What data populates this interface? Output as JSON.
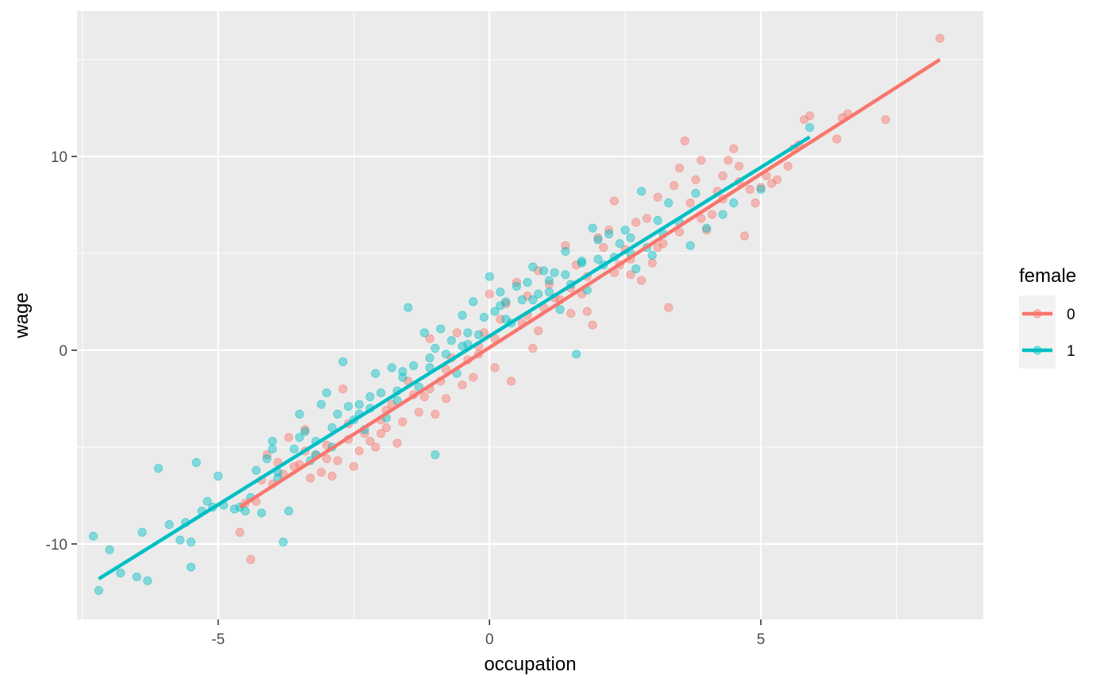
{
  "chart_data": {
    "type": "scatter",
    "title": "",
    "xlabel": "occupation",
    "ylabel": "wage",
    "xlim": [
      -7.6,
      9.1
    ],
    "ylim": [
      -13.9,
      17.5
    ],
    "x_ticks": [
      -5,
      0,
      5
    ],
    "y_ticks": [
      -10,
      0,
      10
    ],
    "x_tick_labels": [
      "-5",
      "0",
      "5"
    ],
    "y_tick_labels": [
      "-10",
      "0",
      "10"
    ],
    "grid": true,
    "legend": {
      "title": "female",
      "placement": "right",
      "entries": [
        "0",
        "1"
      ]
    },
    "series": [
      {
        "name": "0",
        "color": "#F8766D",
        "fit_line": {
          "x": [
            -4.6,
            8.3
          ],
          "y": [
            -8.1,
            15.0
          ]
        },
        "points": [
          [
            8.3,
            16.1
          ],
          [
            7.3,
            11.9
          ],
          [
            6.6,
            12.2
          ],
          [
            6.5,
            12.0
          ],
          [
            6.4,
            10.9
          ],
          [
            5.9,
            12.1
          ],
          [
            5.8,
            11.9
          ],
          [
            5.7,
            10.6
          ],
          [
            5.6,
            10.4
          ],
          [
            5.5,
            9.5
          ],
          [
            5.3,
            8.8
          ],
          [
            5.2,
            8.6
          ],
          [
            5.1,
            9.0
          ],
          [
            5.0,
            8.4
          ],
          [
            4.9,
            7.6
          ],
          [
            4.8,
            8.3
          ],
          [
            4.7,
            5.9
          ],
          [
            4.6,
            9.5
          ],
          [
            4.5,
            10.4
          ],
          [
            4.4,
            9.8
          ],
          [
            4.3,
            9.0
          ],
          [
            4.2,
            8.2
          ],
          [
            4.1,
            7.0
          ],
          [
            4.0,
            6.2
          ],
          [
            3.9,
            9.8
          ],
          [
            3.8,
            8.8
          ],
          [
            3.7,
            7.6
          ],
          [
            3.6,
            10.8
          ],
          [
            3.5,
            9.4
          ],
          [
            3.4,
            8.5
          ],
          [
            3.3,
            2.2
          ],
          [
            3.2,
            5.5
          ],
          [
            3.1,
            7.9
          ],
          [
            3.0,
            4.5
          ],
          [
            2.9,
            6.8
          ],
          [
            2.8,
            3.6
          ],
          [
            2.7,
            6.6
          ],
          [
            2.6,
            3.9
          ],
          [
            2.5,
            5.2
          ],
          [
            2.4,
            4.4
          ],
          [
            2.3,
            7.7
          ],
          [
            2.2,
            6.2
          ],
          [
            2.1,
            5.3
          ],
          [
            2.0,
            5.8
          ],
          [
            1.9,
            1.3
          ],
          [
            1.8,
            3.8
          ],
          [
            1.7,
            2.9
          ],
          [
            1.6,
            4.4
          ],
          [
            1.5,
            1.9
          ],
          [
            1.4,
            5.4
          ],
          [
            1.3,
            2.6
          ],
          [
            1.2,
            2.7
          ],
          [
            1.1,
            3.4
          ],
          [
            1.0,
            2.2
          ],
          [
            0.9,
            4.1
          ],
          [
            0.8,
            0.1
          ],
          [
            0.7,
            2.8
          ],
          [
            0.6,
            1.4
          ],
          [
            0.5,
            3.5
          ],
          [
            0.4,
            -1.6
          ],
          [
            0.3,
            2.4
          ],
          [
            0.2,
            1.6
          ],
          [
            0.1,
            -0.9
          ],
          [
            0.0,
            2.9
          ],
          [
            -0.1,
            0.9
          ],
          [
            -0.2,
            0.2
          ],
          [
            -0.3,
            -1.4
          ],
          [
            -0.4,
            -0.5
          ],
          [
            -0.5,
            -1.8
          ],
          [
            -0.6,
            0.9
          ],
          [
            -0.7,
            -0.4
          ],
          [
            -0.8,
            -2.5
          ],
          [
            -0.9,
            -1.6
          ],
          [
            -1.0,
            -3.3
          ],
          [
            -1.1,
            0.6
          ],
          [
            -1.2,
            -2.4
          ],
          [
            -1.3,
            -3.2
          ],
          [
            -1.4,
            -2.3
          ],
          [
            -1.5,
            -1.6
          ],
          [
            -1.6,
            -3.7
          ],
          [
            -1.7,
            -4.8
          ],
          [
            -1.8,
            -2.8
          ],
          [
            -1.9,
            -4.0
          ],
          [
            -2.0,
            -3.6
          ],
          [
            -2.1,
            -5.0
          ],
          [
            -2.2,
            -4.7
          ],
          [
            -2.3,
            -4.3
          ],
          [
            -2.4,
            -5.2
          ],
          [
            -2.5,
            -6.0
          ],
          [
            -2.6,
            -3.8
          ],
          [
            -2.7,
            -2.0
          ],
          [
            -2.8,
            -5.7
          ],
          [
            -2.9,
            -6.5
          ],
          [
            -3.0,
            -4.9
          ],
          [
            -3.1,
            -6.3
          ],
          [
            -3.2,
            -5.4
          ],
          [
            -3.3,
            -6.6
          ],
          [
            -3.4,
            -4.1
          ],
          [
            -3.5,
            -5.9
          ],
          [
            -3.6,
            -6.0
          ],
          [
            -3.7,
            -4.5
          ],
          [
            -3.8,
            -6.4
          ],
          [
            -3.9,
            -5.8
          ],
          [
            -4.0,
            -6.9
          ],
          [
            -4.1,
            -5.4
          ],
          [
            -4.2,
            -6.7
          ],
          [
            -4.3,
            -7.8
          ],
          [
            -4.4,
            -10.8
          ],
          [
            -4.5,
            -7.9
          ],
          [
            -4.6,
            -9.4
          ],
          [
            4.3,
            7.8
          ],
          [
            3.5,
            6.1
          ],
          [
            2.6,
            4.7
          ],
          [
            1.8,
            2.0
          ],
          [
            0.9,
            1.0
          ],
          [
            0.1,
            0.6
          ],
          [
            -0.8,
            -1.0
          ],
          [
            -1.9,
            -3.1
          ],
          [
            -2.6,
            -4.6
          ],
          [
            -3.4,
            -5.2
          ],
          [
            4.6,
            8.7
          ],
          [
            3.9,
            6.8
          ],
          [
            3.1,
            5.3
          ],
          [
            2.3,
            4.0
          ],
          [
            1.5,
            3.2
          ],
          [
            0.7,
            1.8
          ],
          [
            -0.2,
            -0.2
          ],
          [
            -1.1,
            -2.0
          ],
          [
            -2.0,
            -4.3
          ],
          [
            -3.0,
            -5.6
          ]
        ]
      },
      {
        "name": "1",
        "color": "#00BFC4",
        "fit_line": {
          "x": [
            -7.2,
            5.9
          ],
          "y": [
            -11.8,
            11.0
          ]
        },
        "points": [
          [
            -7.3,
            -9.6
          ],
          [
            -7.2,
            -12.4
          ],
          [
            -7.0,
            -10.3
          ],
          [
            -6.8,
            -11.5
          ],
          [
            -6.5,
            -11.7
          ],
          [
            -6.3,
            -11.9
          ],
          [
            -6.4,
            -9.4
          ],
          [
            -6.1,
            -6.1
          ],
          [
            -5.9,
            -9.0
          ],
          [
            -5.7,
            -9.8
          ],
          [
            -5.6,
            -8.9
          ],
          [
            -5.5,
            -9.9
          ],
          [
            -5.5,
            -11.2
          ],
          [
            -5.4,
            -5.8
          ],
          [
            -5.3,
            -8.3
          ],
          [
            -5.2,
            -7.8
          ],
          [
            -5.1,
            -8.1
          ],
          [
            -5.0,
            -6.5
          ],
          [
            -4.9,
            -8.0
          ],
          [
            -4.7,
            -8.2
          ],
          [
            -4.5,
            -8.3
          ],
          [
            -4.4,
            -7.6
          ],
          [
            -4.3,
            -6.2
          ],
          [
            -4.2,
            -8.4
          ],
          [
            -4.1,
            -5.6
          ],
          [
            -4.0,
            -4.7
          ],
          [
            -3.9,
            -6.6
          ],
          [
            -3.8,
            -9.9
          ],
          [
            -3.7,
            -8.3
          ],
          [
            -3.6,
            -5.1
          ],
          [
            -3.5,
            -3.3
          ],
          [
            -3.4,
            -4.2
          ],
          [
            -3.3,
            -5.7
          ],
          [
            -3.2,
            -4.7
          ],
          [
            -3.1,
            -2.8
          ],
          [
            -3.0,
            -2.2
          ],
          [
            -2.9,
            -5.0
          ],
          [
            -2.8,
            -3.3
          ],
          [
            -2.7,
            -0.6
          ],
          [
            -2.6,
            -2.9
          ],
          [
            -2.5,
            -3.6
          ],
          [
            -2.4,
            -2.8
          ],
          [
            -2.3,
            -4.1
          ],
          [
            -2.2,
            -3.0
          ],
          [
            -2.1,
            -1.2
          ],
          [
            -2.0,
            -2.2
          ],
          [
            -1.9,
            -3.5
          ],
          [
            -1.8,
            -0.9
          ],
          [
            -1.7,
            -2.6
          ],
          [
            -1.6,
            -1.4
          ],
          [
            -1.5,
            2.2
          ],
          [
            -1.4,
            -0.8
          ],
          [
            -1.3,
            -1.9
          ],
          [
            -1.2,
            0.9
          ],
          [
            -1.1,
            -0.4
          ],
          [
            -1.0,
            -5.4
          ],
          [
            -0.9,
            1.1
          ],
          [
            -0.8,
            -0.2
          ],
          [
            -0.7,
            0.5
          ],
          [
            -0.6,
            -1.2
          ],
          [
            -0.5,
            1.8
          ],
          [
            -0.4,
            0.3
          ],
          [
            -0.3,
            2.5
          ],
          [
            -0.2,
            0.8
          ],
          [
            -0.1,
            1.7
          ],
          [
            0.0,
            3.8
          ],
          [
            0.1,
            2.0
          ],
          [
            0.2,
            3.0
          ],
          [
            0.3,
            2.5
          ],
          [
            0.4,
            1.4
          ],
          [
            0.5,
            3.3
          ],
          [
            0.6,
            2.6
          ],
          [
            0.7,
            3.5
          ],
          [
            0.8,
            4.3
          ],
          [
            0.9,
            2.9
          ],
          [
            1.0,
            4.1
          ],
          [
            1.1,
            3.0
          ],
          [
            1.2,
            4.0
          ],
          [
            1.3,
            2.1
          ],
          [
            1.4,
            5.1
          ],
          [
            1.5,
            3.4
          ],
          [
            1.6,
            -0.2
          ],
          [
            1.7,
            4.6
          ],
          [
            1.8,
            3.1
          ],
          [
            1.9,
            6.3
          ],
          [
            2.0,
            5.7
          ],
          [
            2.1,
            4.4
          ],
          [
            2.2,
            6.0
          ],
          [
            2.3,
            4.8
          ],
          [
            2.4,
            5.5
          ],
          [
            2.5,
            6.2
          ],
          [
            2.6,
            5.0
          ],
          [
            2.7,
            4.2
          ],
          [
            2.8,
            8.2
          ],
          [
            2.9,
            5.3
          ],
          [
            3.0,
            4.9
          ],
          [
            3.1,
            6.7
          ],
          [
            3.2,
            6.0
          ],
          [
            3.3,
            7.6
          ],
          [
            3.5,
            6.6
          ],
          [
            3.7,
            5.4
          ],
          [
            3.8,
            8.1
          ],
          [
            4.0,
            6.3
          ],
          [
            4.3,
            7.0
          ],
          [
            4.5,
            7.6
          ],
          [
            5.0,
            8.3
          ],
          [
            5.9,
            11.5
          ],
          [
            -4.0,
            -5.1
          ],
          [
            -3.5,
            -4.5
          ],
          [
            -2.9,
            -4.0
          ],
          [
            -2.2,
            -2.4
          ],
          [
            -1.6,
            -1.1
          ],
          [
            -1.0,
            0.1
          ],
          [
            -0.4,
            0.9
          ],
          [
            0.2,
            2.3
          ],
          [
            0.8,
            2.6
          ],
          [
            1.4,
            3.9
          ],
          [
            2.0,
            4.7
          ],
          [
            2.6,
            5.8
          ],
          [
            -4.6,
            -8.1
          ],
          [
            -3.9,
            -6.3
          ],
          [
            -3.2,
            -5.4
          ],
          [
            -2.4,
            -3.3
          ],
          [
            -1.7,
            -2.1
          ],
          [
            -1.1,
            -0.9
          ],
          [
            -0.5,
            0.2
          ],
          [
            0.3,
            1.6
          ],
          [
            1.1,
            3.6
          ],
          [
            1.7,
            4.5
          ]
        ]
      }
    ]
  }
}
